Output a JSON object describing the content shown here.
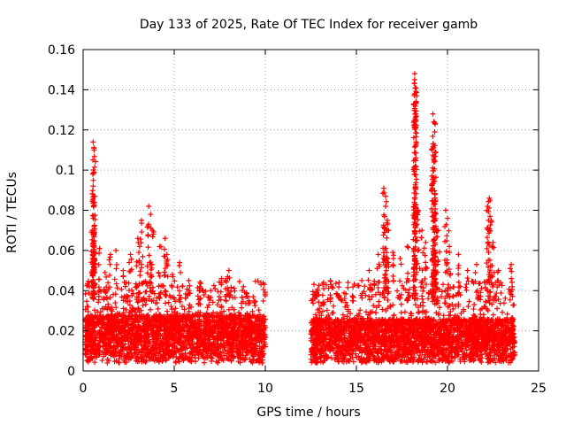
{
  "chart_data": {
    "type": "scatter",
    "title": "Day 133 of 2025, Rate Of TEC Index for receiver gamb",
    "xlabel": "GPS time / hours",
    "ylabel": "ROTI / TECUs",
    "xlim": [
      0,
      25
    ],
    "ylim": [
      0,
      0.16
    ],
    "x_ticks": [
      0,
      5,
      10,
      15,
      20,
      25
    ],
    "x_tick_labels": [
      "0",
      "5",
      "10",
      "15",
      "20",
      "25"
    ],
    "y_ticks": [
      0,
      0.02,
      0.04,
      0.06,
      0.08,
      0.1,
      0.12,
      0.14,
      0.16
    ],
    "y_tick_labels": [
      "0",
      "0.02",
      "0.04",
      "0.06",
      "0.08",
      "0.1",
      "0.12",
      "0.14",
      "0.16"
    ],
    "grid": true,
    "marker": "plus",
    "color": "#ff0000",
    "series": [
      {
        "density": [
          {
            "x0": 0.1,
            "x1": 10.0,
            "n": 2600,
            "ymin": 0.004,
            "ymed": 0.016,
            "ymax": 0.045
          },
          {
            "x0": 12.5,
            "x1": 23.7,
            "n": 2900,
            "ymin": 0.004,
            "ymed": 0.015,
            "ymax": 0.045
          }
        ],
        "peaks": [
          {
            "x": 0.5,
            "y": 0.056
          },
          {
            "x": 0.55,
            "y": 0.114
          },
          {
            "x": 0.6,
            "y": 0.11
          },
          {
            "x": 0.6,
            "y": 0.099
          },
          {
            "x": 0.55,
            "y": 0.092
          },
          {
            "x": 0.6,
            "y": 0.087
          },
          {
            "x": 0.5,
            "y": 0.07
          },
          {
            "x": 0.55,
            "y": 0.068
          },
          {
            "x": 0.6,
            "y": 0.072
          },
          {
            "x": 0.9,
            "y": 0.061
          },
          {
            "x": 1.2,
            "y": 0.049
          },
          {
            "x": 1.5,
            "y": 0.058
          },
          {
            "x": 1.8,
            "y": 0.06
          },
          {
            "x": 2.2,
            "y": 0.05
          },
          {
            "x": 2.6,
            "y": 0.058
          },
          {
            "x": 3.0,
            "y": 0.066
          },
          {
            "x": 3.2,
            "y": 0.075
          },
          {
            "x": 3.1,
            "y": 0.062
          },
          {
            "x": 3.6,
            "y": 0.082
          },
          {
            "x": 3.7,
            "y": 0.078
          },
          {
            "x": 3.8,
            "y": 0.07
          },
          {
            "x": 4.2,
            "y": 0.062
          },
          {
            "x": 4.5,
            "y": 0.066
          },
          {
            "x": 4.6,
            "y": 0.058
          },
          {
            "x": 4.9,
            "y": 0.048
          },
          {
            "x": 5.3,
            "y": 0.054
          },
          {
            "x": 5.8,
            "y": 0.045
          },
          {
            "x": 6.4,
            "y": 0.042
          },
          {
            "x": 7.0,
            "y": 0.04
          },
          {
            "x": 7.6,
            "y": 0.046
          },
          {
            "x": 7.8,
            "y": 0.045
          },
          {
            "x": 8.0,
            "y": 0.05
          },
          {
            "x": 8.8,
            "y": 0.042
          },
          {
            "x": 9.4,
            "y": 0.034
          },
          {
            "x": 12.6,
            "y": 0.036
          },
          {
            "x": 12.8,
            "y": 0.039
          },
          {
            "x": 13.2,
            "y": 0.033
          },
          {
            "x": 13.6,
            "y": 0.043
          },
          {
            "x": 14.0,
            "y": 0.037
          },
          {
            "x": 14.8,
            "y": 0.035
          },
          {
            "x": 15.3,
            "y": 0.045
          },
          {
            "x": 15.7,
            "y": 0.05
          },
          {
            "x": 16.2,
            "y": 0.058
          },
          {
            "x": 16.5,
            "y": 0.091
          },
          {
            "x": 16.6,
            "y": 0.087
          },
          {
            "x": 16.6,
            "y": 0.082
          },
          {
            "x": 16.7,
            "y": 0.075
          },
          {
            "x": 16.7,
            "y": 0.07
          },
          {
            "x": 17.0,
            "y": 0.059
          },
          {
            "x": 17.4,
            "y": 0.056
          },
          {
            "x": 17.8,
            "y": 0.062
          },
          {
            "x": 18.2,
            "y": 0.148
          },
          {
            "x": 18.2,
            "y": 0.145
          },
          {
            "x": 18.25,
            "y": 0.141
          },
          {
            "x": 18.2,
            "y": 0.138
          },
          {
            "x": 18.25,
            "y": 0.128
          },
          {
            "x": 18.25,
            "y": 0.112
          },
          {
            "x": 18.4,
            "y": 0.08
          },
          {
            "x": 18.6,
            "y": 0.07
          },
          {
            "x": 18.8,
            "y": 0.064
          },
          {
            "x": 19.2,
            "y": 0.128
          },
          {
            "x": 19.25,
            "y": 0.124
          },
          {
            "x": 19.3,
            "y": 0.119
          },
          {
            "x": 19.2,
            "y": 0.113
          },
          {
            "x": 19.3,
            "y": 0.107
          },
          {
            "x": 19.25,
            "y": 0.096
          },
          {
            "x": 19.35,
            "y": 0.085
          },
          {
            "x": 19.3,
            "y": 0.079
          },
          {
            "x": 19.5,
            "y": 0.07
          },
          {
            "x": 19.9,
            "y": 0.08
          },
          {
            "x": 20.0,
            "y": 0.076
          },
          {
            "x": 20.1,
            "y": 0.062
          },
          {
            "x": 20.6,
            "y": 0.058
          },
          {
            "x": 21.1,
            "y": 0.05
          },
          {
            "x": 21.6,
            "y": 0.053
          },
          {
            "x": 22.2,
            "y": 0.082
          },
          {
            "x": 22.3,
            "y": 0.086
          },
          {
            "x": 22.4,
            "y": 0.075
          },
          {
            "x": 22.3,
            "y": 0.07
          },
          {
            "x": 22.5,
            "y": 0.064
          },
          {
            "x": 22.8,
            "y": 0.05
          },
          {
            "x": 23.5,
            "y": 0.053
          },
          {
            "x": 23.5,
            "y": 0.046
          },
          {
            "x": 23.55,
            "y": 0.042
          }
        ]
      }
    ]
  }
}
